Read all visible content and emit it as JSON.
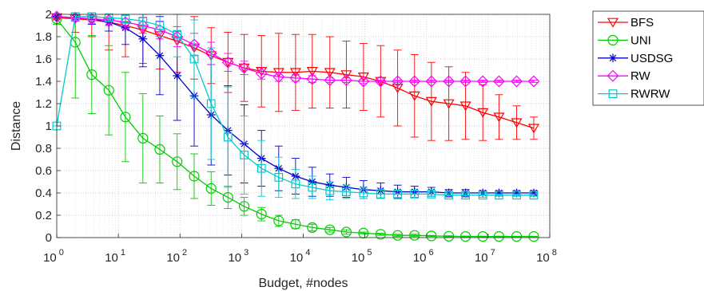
{
  "chart_data": {
    "type": "line",
    "title": "",
    "xlabel": "Budget, #nodes",
    "ylabel": "Distance",
    "xscale": "log",
    "xlim": [
      1,
      100000000
    ],
    "ylim": [
      0,
      2
    ],
    "x_ticks": [
      {
        "value": 1,
        "base": "10",
        "exp": "0"
      },
      {
        "value": 10,
        "base": "10",
        "exp": "1"
      },
      {
        "value": 100,
        "base": "10",
        "exp": "2"
      },
      {
        "value": 1000,
        "base": "10",
        "exp": "3"
      },
      {
        "value": 10000,
        "base": "10",
        "exp": "4"
      },
      {
        "value": 100000,
        "base": "10",
        "exp": "5"
      },
      {
        "value": 1000000,
        "base": "10",
        "exp": "6"
      },
      {
        "value": 10000000,
        "base": "10",
        "exp": "7"
      },
      {
        "value": 100000000,
        "base": "10",
        "exp": "8"
      }
    ],
    "y_ticks": [
      {
        "value": 0,
        "label": "0"
      },
      {
        "value": 0.2,
        "label": "0.2"
      },
      {
        "value": 0.4,
        "label": "0.4"
      },
      {
        "value": 0.6,
        "label": "0.6"
      },
      {
        "value": 0.8,
        "label": "0.8"
      },
      {
        "value": 1,
        "label": "1"
      },
      {
        "value": 1.2,
        "label": "1.2"
      },
      {
        "value": 1.4,
        "label": "1.4"
      },
      {
        "value": 1.6,
        "label": "1.6"
      },
      {
        "value": 1.8,
        "label": "1.8"
      },
      {
        "value": 2,
        "label": "2"
      }
    ],
    "grid": true,
    "legend_position": "outside-right",
    "series": [
      {
        "name": "BFS",
        "color": "#ff0000",
        "marker": "triangle-down",
        "points": [
          {
            "budget": 1,
            "mean": 1.97,
            "error": 0.02
          },
          {
            "budget": 2,
            "mean": 1.96,
            "error": 0.12
          },
          {
            "budget": 3.7,
            "mean": 1.95,
            "error": 0.15
          },
          {
            "budget": 7,
            "mean": 1.93,
            "error": 0.25
          },
          {
            "budget": 13,
            "mean": 1.9,
            "error": 0.28
          },
          {
            "budget": 25,
            "mean": 1.86,
            "error": 0.3
          },
          {
            "budget": 47,
            "mean": 1.81,
            "error": 0.3
          },
          {
            "budget": 90,
            "mean": 1.76,
            "error": 0.28
          },
          {
            "budget": 170,
            "mean": 1.7,
            "error": 0.28
          },
          {
            "budget": 320,
            "mean": 1.63,
            "error": 0.25
          },
          {
            "budget": 600,
            "mean": 1.57,
            "error": 0.27
          },
          {
            "budget": 1100,
            "mean": 1.52,
            "error": 0.3
          },
          {
            "budget": 2100,
            "mean": 1.49,
            "error": 0.32
          },
          {
            "budget": 4000,
            "mean": 1.48,
            "error": 0.35
          },
          {
            "budget": 7500,
            "mean": 1.48,
            "error": 0.34
          },
          {
            "budget": 14000,
            "mean": 1.49,
            "error": 0.33
          },
          {
            "budget": 27000,
            "mean": 1.48,
            "error": 0.32
          },
          {
            "budget": 50000,
            "mean": 1.46,
            "error": 0.3
          },
          {
            "budget": 95000,
            "mean": 1.44,
            "error": 0.3
          },
          {
            "budget": 180000,
            "mean": 1.4,
            "error": 0.32
          },
          {
            "budget": 340000,
            "mean": 1.34,
            "error": 0.34
          },
          {
            "budget": 640000,
            "mean": 1.27,
            "error": 0.37
          },
          {
            "budget": 1200000,
            "mean": 1.22,
            "error": 0.35
          },
          {
            "budget": 2300000,
            "mean": 1.2,
            "error": 0.33
          },
          {
            "budget": 4300000,
            "mean": 1.18,
            "error": 0.3
          },
          {
            "budget": 8200000,
            "mean": 1.12,
            "error": 0.25
          },
          {
            "budget": 15000000,
            "mean": 1.08,
            "error": 0.2
          },
          {
            "budget": 29000000,
            "mean": 1.03,
            "error": 0.15
          },
          {
            "budget": 55000000,
            "mean": 0.98,
            "error": 0.1
          }
        ]
      },
      {
        "name": "UNI",
        "color": "#00cc00",
        "marker": "circle",
        "points": [
          {
            "budget": 1,
            "mean": 1.96,
            "error": 0.05
          },
          {
            "budget": 2,
            "mean": 1.75,
            "error": 0.5
          },
          {
            "budget": 3.7,
            "mean": 1.46,
            "error": 0.35
          },
          {
            "budget": 7,
            "mean": 1.32,
            "error": 0.4
          },
          {
            "budget": 13,
            "mean": 1.08,
            "error": 0.4
          },
          {
            "budget": 25,
            "mean": 0.89,
            "error": 0.4
          },
          {
            "budget": 47,
            "mean": 0.79,
            "error": 0.3
          },
          {
            "budget": 90,
            "mean": 0.68,
            "error": 0.25
          },
          {
            "budget": 170,
            "mean": 0.55,
            "error": 0.2
          },
          {
            "budget": 320,
            "mean": 0.44,
            "error": 0.15
          },
          {
            "budget": 600,
            "mean": 0.36,
            "error": 0.1
          },
          {
            "budget": 1100,
            "mean": 0.28,
            "error": 0.08
          },
          {
            "budget": 2100,
            "mean": 0.21,
            "error": 0.06
          },
          {
            "budget": 4000,
            "mean": 0.15,
            "error": 0.05
          },
          {
            "budget": 7500,
            "mean": 0.12,
            "error": 0.04
          },
          {
            "budget": 14000,
            "mean": 0.09,
            "error": 0.03
          },
          {
            "budget": 27000,
            "mean": 0.07,
            "error": 0.02
          },
          {
            "budget": 50000,
            "mean": 0.05,
            "error": 0.02
          },
          {
            "budget": 95000,
            "mean": 0.04,
            "error": 0.01
          },
          {
            "budget": 180000,
            "mean": 0.03,
            "error": 0.01
          },
          {
            "budget": 340000,
            "mean": 0.02,
            "error": 0.01
          },
          {
            "budget": 640000,
            "mean": 0.02,
            "error": 0.01
          },
          {
            "budget": 1200000,
            "mean": 0.015,
            "error": 0.005
          },
          {
            "budget": 2300000,
            "mean": 0.012,
            "error": 0.005
          },
          {
            "budget": 4300000,
            "mean": 0.01,
            "error": 0.004
          },
          {
            "budget": 8200000,
            "mean": 0.01,
            "error": 0.003
          },
          {
            "budget": 15000000,
            "mean": 0.01,
            "error": 0.003
          },
          {
            "budget": 29000000,
            "mean": 0.01,
            "error": 0.002
          },
          {
            "budget": 55000000,
            "mean": 0.01,
            "error": 0.002
          }
        ]
      },
      {
        "name": "USDSG",
        "color": "#0000cc",
        "marker": "asterisk",
        "points": [
          {
            "budget": 1,
            "mean": 1.98,
            "error": 0.02
          },
          {
            "budget": 2,
            "mean": 1.97,
            "error": 0.03
          },
          {
            "budget": 3.7,
            "mean": 1.96,
            "error": 0.05
          },
          {
            "budget": 7,
            "mean": 1.93,
            "error": 0.08
          },
          {
            "budget": 13,
            "mean": 1.88,
            "error": 0.15
          },
          {
            "budget": 25,
            "mean": 1.78,
            "error": 0.25
          },
          {
            "budget": 47,
            "mean": 1.63,
            "error": 0.35
          },
          {
            "budget": 90,
            "mean": 1.45,
            "error": 0.4
          },
          {
            "budget": 170,
            "mean": 1.27,
            "error": 0.45
          },
          {
            "budget": 320,
            "mean": 1.1,
            "error": 0.45
          },
          {
            "budget": 600,
            "mean": 0.96,
            "error": 0.4
          },
          {
            "budget": 1100,
            "mean": 0.84,
            "error": 0.35
          },
          {
            "budget": 2100,
            "mean": 0.71,
            "error": 0.25
          },
          {
            "budget": 4000,
            "mean": 0.62,
            "error": 0.2
          },
          {
            "budget": 7500,
            "mean": 0.55,
            "error": 0.16
          },
          {
            "budget": 14000,
            "mean": 0.5,
            "error": 0.13
          },
          {
            "budget": 27000,
            "mean": 0.47,
            "error": 0.1
          },
          {
            "budget": 50000,
            "mean": 0.45,
            "error": 0.09
          },
          {
            "budget": 95000,
            "mean": 0.43,
            "error": 0.08
          },
          {
            "budget": 180000,
            "mean": 0.42,
            "error": 0.07
          },
          {
            "budget": 340000,
            "mean": 0.41,
            "error": 0.06
          },
          {
            "budget": 640000,
            "mean": 0.41,
            "error": 0.05
          },
          {
            "budget": 1200000,
            "mean": 0.41,
            "error": 0.04
          },
          {
            "budget": 2300000,
            "mean": 0.4,
            "error": 0.03
          },
          {
            "budget": 4300000,
            "mean": 0.4,
            "error": 0.03
          },
          {
            "budget": 8200000,
            "mean": 0.4,
            "error": 0.02
          },
          {
            "budget": 15000000,
            "mean": 0.4,
            "error": 0.02
          },
          {
            "budget": 29000000,
            "mean": 0.4,
            "error": 0.02
          },
          {
            "budget": 55000000,
            "mean": 0.4,
            "error": 0.02
          }
        ]
      },
      {
        "name": "RW",
        "color": "#ff00ff",
        "marker": "diamond",
        "points": [
          {
            "budget": 1,
            "mean": 1.98,
            "error": 0.02
          },
          {
            "budget": 2,
            "mean": 1.97,
            "error": 0.03
          },
          {
            "budget": 3.7,
            "mean": 1.96,
            "error": 0.04
          },
          {
            "budget": 7,
            "mean": 1.95,
            "error": 0.05
          },
          {
            "budget": 13,
            "mean": 1.93,
            "error": 0.06
          },
          {
            "budget": 25,
            "mean": 1.9,
            "error": 0.07
          },
          {
            "budget": 47,
            "mean": 1.86,
            "error": 0.08
          },
          {
            "budget": 90,
            "mean": 1.8,
            "error": 0.09
          },
          {
            "budget": 170,
            "mean": 1.73,
            "error": 0.1
          },
          {
            "budget": 320,
            "mean": 1.65,
            "error": 0.1
          },
          {
            "budget": 600,
            "mean": 1.57,
            "error": 0.08
          },
          {
            "budget": 1100,
            "mean": 1.52,
            "error": 0.06
          },
          {
            "budget": 2100,
            "mean": 1.47,
            "error": 0.05
          },
          {
            "budget": 4000,
            "mean": 1.44,
            "error": 0.04
          },
          {
            "budget": 7500,
            "mean": 1.43,
            "error": 0.03
          },
          {
            "budget": 14000,
            "mean": 1.42,
            "error": 0.03
          },
          {
            "budget": 27000,
            "mean": 1.41,
            "error": 0.02
          },
          {
            "budget": 50000,
            "mean": 1.41,
            "error": 0.02
          },
          {
            "budget": 95000,
            "mean": 1.4,
            "error": 0.02
          },
          {
            "budget": 180000,
            "mean": 1.4,
            "error": 0.01
          },
          {
            "budget": 340000,
            "mean": 1.4,
            "error": 0.01
          },
          {
            "budget": 640000,
            "mean": 1.4,
            "error": 0.01
          },
          {
            "budget": 1200000,
            "mean": 1.4,
            "error": 0.01
          },
          {
            "budget": 2300000,
            "mean": 1.4,
            "error": 0.01
          },
          {
            "budget": 4300000,
            "mean": 1.4,
            "error": 0.01
          },
          {
            "budget": 8200000,
            "mean": 1.4,
            "error": 0.01
          },
          {
            "budget": 15000000,
            "mean": 1.4,
            "error": 0.01
          },
          {
            "budget": 29000000,
            "mean": 1.4,
            "error": 0.01
          },
          {
            "budget": 55000000,
            "mean": 1.4,
            "error": 0.01
          }
        ]
      },
      {
        "name": "RWRW",
        "color": "#00cccc",
        "marker": "square",
        "points": [
          {
            "budget": 1,
            "mean": 1.0,
            "error": 0.0
          },
          {
            "budget": 2,
            "mean": 1.98,
            "error": 0.02
          },
          {
            "budget": 3.7,
            "mean": 1.98,
            "error": 0.02
          },
          {
            "budget": 7,
            "mean": 1.97,
            "error": 0.03
          },
          {
            "budget": 13,
            "mean": 1.96,
            "error": 0.04
          },
          {
            "budget": 25,
            "mean": 1.94,
            "error": 0.06
          },
          {
            "budget": 47,
            "mean": 1.9,
            "error": 0.1
          },
          {
            "budget": 90,
            "mean": 1.82,
            "error": 0.2
          },
          {
            "budget": 170,
            "mean": 1.6,
            "error": 0.35
          },
          {
            "budget": 320,
            "mean": 1.2,
            "error": 0.5
          },
          {
            "budget": 600,
            "mean": 0.9,
            "error": 0.45
          },
          {
            "budget": 1100,
            "mean": 0.74,
            "error": 0.35
          },
          {
            "budget": 2100,
            "mean": 0.62,
            "error": 0.25
          },
          {
            "budget": 4000,
            "mean": 0.54,
            "error": 0.18
          },
          {
            "budget": 7500,
            "mean": 0.48,
            "error": 0.13
          },
          {
            "budget": 14000,
            "mean": 0.45,
            "error": 0.1
          },
          {
            "budget": 27000,
            "mean": 0.42,
            "error": 0.08
          },
          {
            "budget": 50000,
            "mean": 0.41,
            "error": 0.06
          },
          {
            "budget": 95000,
            "mean": 0.4,
            "error": 0.05
          },
          {
            "budget": 180000,
            "mean": 0.39,
            "error": 0.04
          },
          {
            "budget": 340000,
            "mean": 0.39,
            "error": 0.03
          },
          {
            "budget": 640000,
            "mean": 0.39,
            "error": 0.03
          },
          {
            "budget": 1200000,
            "mean": 0.39,
            "error": 0.02
          },
          {
            "budget": 2300000,
            "mean": 0.38,
            "error": 0.02
          },
          {
            "budget": 4300000,
            "mean": 0.38,
            "error": 0.02
          },
          {
            "budget": 8200000,
            "mean": 0.38,
            "error": 0.02
          },
          {
            "budget": 15000000,
            "mean": 0.38,
            "error": 0.01
          },
          {
            "budget": 29000000,
            "mean": 0.38,
            "error": 0.01
          },
          {
            "budget": 55000000,
            "mean": 0.38,
            "error": 0.01
          }
        ]
      }
    ]
  }
}
